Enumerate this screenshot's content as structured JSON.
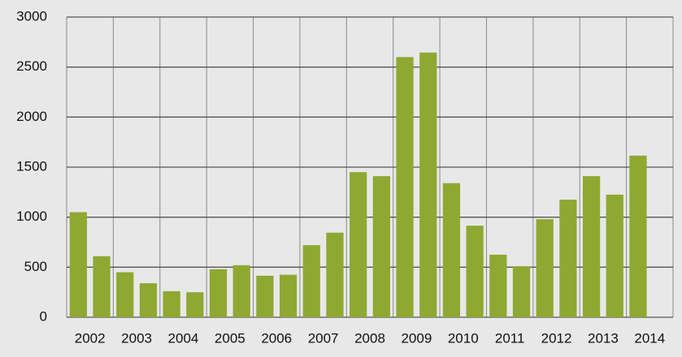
{
  "chart_data": {
    "type": "bar",
    "categories": [
      "2002",
      null,
      "2003",
      null,
      "2004",
      null,
      "2005",
      null,
      "2006",
      null,
      "2007",
      null,
      "2008",
      null,
      "2009",
      null,
      "2010",
      null,
      "2011",
      null,
      "2012",
      null,
      "2013",
      null,
      "2014",
      null
    ],
    "values": [
      1050,
      610,
      450,
      340,
      260,
      250,
      480,
      520,
      415,
      425,
      720,
      845,
      1450,
      1410,
      2600,
      2645,
      1340,
      915,
      625,
      510,
      980,
      1175,
      1410,
      1225,
      1615,
      null
    ],
    "color": "#8fa832",
    "ylim": [
      0,
      3000
    ],
    "yticks": [
      0,
      500,
      1000,
      1500,
      2000,
      2500,
      3000
    ],
    "grid": true
  }
}
